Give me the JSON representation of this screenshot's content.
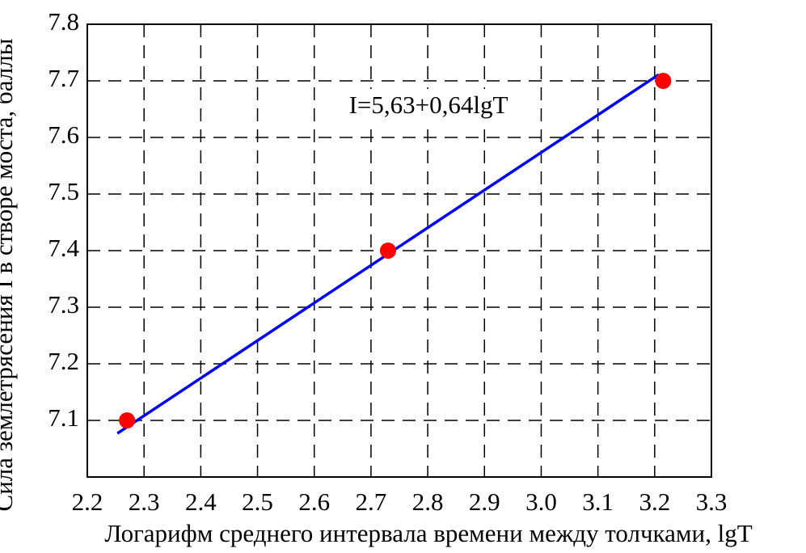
{
  "chart_data": {
    "type": "scatter",
    "xlabel": "Логарифм среднего интервала времени между толчками, lgT",
    "ylabel": "Сила землетрясения I в створе моста, баллы",
    "annotation": "I=5,63+0,64lgT",
    "series": [
      {
        "type": "scatter",
        "color": "#ff0000",
        "x": [
          2.27,
          2.73,
          3.215
        ],
        "values": [
          7.1,
          7.4,
          7.7
        ]
      },
      {
        "type": "line",
        "color": "#0000ff",
        "x": [
          2.253,
          3.207
        ],
        "values": [
          7.077,
          7.711
        ]
      }
    ],
    "xlim": [
      2.2,
      3.3
    ],
    "xticks": [
      2.2,
      2.3,
      2.4,
      2.5,
      2.6,
      2.7,
      2.8,
      2.9,
      {
        "value": 3.0,
        "label": "3.0"
      },
      3.1,
      3.2,
      3.3
    ],
    "ylim": [
      7.0,
      7.8
    ],
    "yticks": [
      7.1,
      7.2,
      7.3,
      7.4,
      7.5,
      7.6,
      7.7,
      7.8
    ],
    "grid": true
  }
}
